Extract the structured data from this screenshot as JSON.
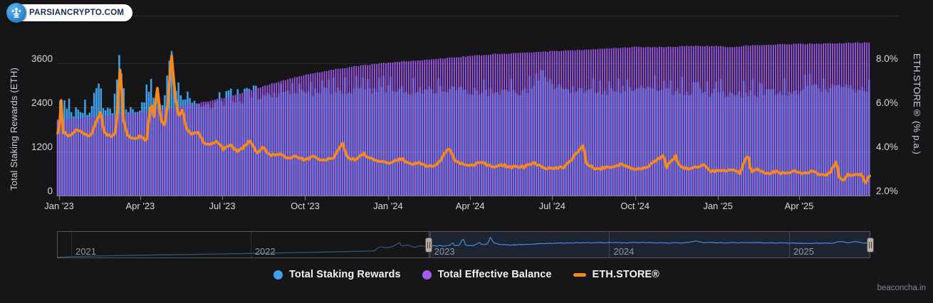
{
  "header": {
    "brand": "PARSIANCRYPTO.COM",
    "brand_color": "#1b2b4d",
    "pill_bg": "#ffffff",
    "icon": "parsiancrypto-logo-icon",
    "rule_color": "#43282e"
  },
  "watermark": "beaconcha.in",
  "legend": {
    "items": [
      {
        "label": "Total Staking Rewards",
        "color": "#3fa2ea",
        "marker": "circle"
      },
      {
        "label": "Total Effective Balance",
        "color": "#a35af0",
        "marker": "circle"
      },
      {
        "label": "ETH.STORE®",
        "color": "#f5881f",
        "marker": "dash"
      }
    ]
  },
  "chart_data": {
    "type": "combo",
    "subtype": [
      "column",
      "column",
      "line"
    ],
    "time_range": [
      "2022-12-29",
      "2025-06-22"
    ],
    "grid": "horizontal",
    "left_axis": {
      "title": "Total Staking Rewards (ETH)",
      "tick_values": [
        0,
        1200,
        2400,
        3600
      ],
      "min": 0,
      "max": 4316,
      "unit": "ETH"
    },
    "right_axis": {
      "title": "ETH.STORE® (% p.a.)",
      "tick_labels": [
        "2.0%",
        "4.0%",
        "6.0%",
        "8.0%"
      ],
      "tick_values": [
        2,
        4,
        6,
        8
      ],
      "min": 2,
      "max": 9.2,
      "unit": "% p.a."
    },
    "balance_axis": {
      "visible": false,
      "min": 0,
      "max": 36,
      "unit": "M ETH"
    },
    "x_ticks": [
      {
        "label": "Jan '23",
        "date": "2023-01-01"
      },
      {
        "label": "Apr '23",
        "date": "2023-04-01"
      },
      {
        "label": "Jul '23",
        "date": "2023-07-01"
      },
      {
        "label": "Oct '23",
        "date": "2023-10-01"
      },
      {
        "label": "Jan '24",
        "date": "2024-01-01"
      },
      {
        "label": "Apr '24",
        "date": "2024-04-01"
      },
      {
        "label": "Jul '24",
        "date": "2024-07-01"
      },
      {
        "label": "Oct '24",
        "date": "2024-10-01"
      },
      {
        "label": "Jan '25",
        "date": "2025-01-01"
      },
      {
        "label": "Apr '25",
        "date": "2025-04-01"
      }
    ],
    "series": [
      {
        "name": "Total Staking Rewards",
        "type": "column",
        "axis": "left",
        "color": "#3fa2ea",
        "jitter": 140,
        "points": [
          [
            "2023-01-01",
            2150
          ],
          [
            "2023-01-08",
            2300
          ],
          [
            "2023-01-15",
            2200
          ],
          [
            "2023-01-22",
            2350
          ],
          [
            "2023-02-01",
            2250
          ],
          [
            "2023-02-10",
            2400
          ],
          [
            "2023-02-16",
            2900
          ],
          [
            "2023-02-20",
            2350
          ],
          [
            "2023-03-01",
            2300
          ],
          [
            "2023-03-10",
            3780
          ],
          [
            "2023-03-12",
            2600
          ],
          [
            "2023-03-20",
            2300
          ],
          [
            "2023-04-01",
            2350
          ],
          [
            "2023-04-13",
            2900
          ],
          [
            "2023-04-16",
            2600
          ],
          [
            "2023-04-25",
            2500
          ],
          [
            "2023-05-01",
            3000
          ],
          [
            "2023-05-05",
            4240
          ],
          [
            "2023-05-07",
            3400
          ],
          [
            "2023-05-12",
            2800
          ],
          [
            "2023-05-20",
            2600
          ],
          [
            "2023-06-01",
            2500
          ],
          [
            "2023-06-15",
            2450
          ],
          [
            "2023-07-01",
            2500
          ],
          [
            "2023-07-15",
            2550
          ],
          [
            "2023-08-01",
            2650
          ],
          [
            "2023-08-15",
            2700
          ],
          [
            "2023-09-01",
            2750
          ],
          [
            "2023-10-01",
            2800
          ],
          [
            "2023-11-01",
            2850
          ],
          [
            "2023-12-01",
            2850
          ],
          [
            "2024-01-01",
            2900
          ],
          [
            "2024-02-01",
            2850
          ],
          [
            "2024-03-01",
            2900
          ],
          [
            "2024-04-01",
            2850
          ],
          [
            "2024-05-01",
            2800
          ],
          [
            "2024-06-01",
            2850
          ],
          [
            "2024-06-25",
            3150
          ],
          [
            "2024-07-10",
            2900
          ],
          [
            "2024-08-01",
            2900
          ],
          [
            "2024-09-01",
            2850
          ],
          [
            "2024-10-01",
            2900
          ],
          [
            "2024-11-01",
            2850
          ],
          [
            "2024-12-01",
            2800
          ],
          [
            "2025-01-01",
            2800
          ],
          [
            "2025-02-01",
            2750
          ],
          [
            "2025-03-01",
            2800
          ],
          [
            "2025-04-01",
            2800
          ],
          [
            "2025-04-15",
            3100
          ],
          [
            "2025-05-01",
            2800
          ],
          [
            "2025-05-15",
            3100
          ],
          [
            "2025-06-01",
            2850
          ],
          [
            "2025-06-20",
            2900
          ]
        ]
      },
      {
        "name": "Total Effective Balance",
        "type": "column",
        "axis": "balance",
        "color": "#a35af0",
        "jitter": 0.11,
        "points": [
          [
            "2023-01-01",
            17.5
          ],
          [
            "2023-02-01",
            18.0
          ],
          [
            "2023-03-01",
            18.5
          ],
          [
            "2023-04-01",
            19.1
          ],
          [
            "2023-05-01",
            20.0
          ],
          [
            "2023-06-01",
            21.1
          ],
          [
            "2023-07-01",
            22.4
          ],
          [
            "2023-08-01",
            24.2
          ],
          [
            "2023-09-01",
            26.2
          ],
          [
            "2023-10-01",
            27.8
          ],
          [
            "2023-11-01",
            29.0
          ],
          [
            "2023-12-01",
            29.9
          ],
          [
            "2024-01-01",
            30.6
          ],
          [
            "2024-02-01",
            31.1
          ],
          [
            "2024-03-01",
            31.6
          ],
          [
            "2024-04-01",
            32.1
          ],
          [
            "2024-05-01",
            32.6
          ],
          [
            "2024-06-01",
            32.9
          ],
          [
            "2024-07-01",
            33.2
          ],
          [
            "2024-08-01",
            33.5
          ],
          [
            "2024-09-01",
            33.9
          ],
          [
            "2024-10-01",
            34.2
          ],
          [
            "2024-11-01",
            34.2
          ],
          [
            "2024-12-01",
            34.4
          ],
          [
            "2025-01-01",
            34.4
          ],
          [
            "2025-01-20",
            34.1
          ],
          [
            "2025-02-01",
            34.5
          ],
          [
            "2025-03-01",
            34.7
          ],
          [
            "2025-04-01",
            34.9
          ],
          [
            "2025-05-01",
            35.0
          ],
          [
            "2025-06-22",
            35.2
          ]
        ]
      },
      {
        "name": "ETH.STORE®",
        "type": "line",
        "axis": "right",
        "color": "#f5881f",
        "width": 3.8,
        "jitter": 0.055,
        "points": [
          [
            "2023-01-01",
            4.8
          ],
          [
            "2023-01-03",
            6.7
          ],
          [
            "2023-01-05",
            4.9
          ],
          [
            "2023-01-12",
            4.7
          ],
          [
            "2023-01-20",
            5.0
          ],
          [
            "2023-01-28",
            4.8
          ],
          [
            "2023-02-05",
            4.7
          ],
          [
            "2023-02-16",
            5.8
          ],
          [
            "2023-02-20",
            4.8
          ],
          [
            "2023-02-26",
            4.7
          ],
          [
            "2023-03-05",
            4.8
          ],
          [
            "2023-03-10",
            8.0
          ],
          [
            "2023-03-13",
            5.5
          ],
          [
            "2023-03-18",
            4.7
          ],
          [
            "2023-03-25",
            4.6
          ],
          [
            "2023-04-02",
            4.7
          ],
          [
            "2023-04-08",
            4.5
          ],
          [
            "2023-04-13",
            6.3
          ],
          [
            "2023-04-16",
            5.6
          ],
          [
            "2023-04-20",
            6.9
          ],
          [
            "2023-04-24",
            5.4
          ],
          [
            "2023-04-28",
            5.2
          ],
          [
            "2023-05-03",
            6.5
          ],
          [
            "2023-05-05",
            8.7
          ],
          [
            "2023-05-07",
            7.8
          ],
          [
            "2023-05-10",
            6.4
          ],
          [
            "2023-05-14",
            5.6
          ],
          [
            "2023-05-18",
            5.9
          ],
          [
            "2023-05-22",
            5.1
          ],
          [
            "2023-05-28",
            4.8
          ],
          [
            "2023-06-04",
            4.9
          ],
          [
            "2023-06-10",
            4.4
          ],
          [
            "2023-06-18",
            4.3
          ],
          [
            "2023-06-25",
            4.5
          ],
          [
            "2023-07-02",
            4.1
          ],
          [
            "2023-07-10",
            4.3
          ],
          [
            "2023-07-18",
            4.0
          ],
          [
            "2023-07-25",
            4.2
          ],
          [
            "2023-08-01",
            4.5
          ],
          [
            "2023-08-08",
            3.9
          ],
          [
            "2023-08-15",
            4.2
          ],
          [
            "2023-08-23",
            3.8
          ],
          [
            "2023-09-01",
            3.9
          ],
          [
            "2023-09-10",
            3.7
          ],
          [
            "2023-09-20",
            3.8
          ],
          [
            "2023-10-01",
            3.6
          ],
          [
            "2023-10-10",
            3.8
          ],
          [
            "2023-10-20",
            3.6
          ],
          [
            "2023-11-01",
            3.7
          ],
          [
            "2023-11-12",
            4.4
          ],
          [
            "2023-11-16",
            3.8
          ],
          [
            "2023-11-25",
            3.6
          ],
          [
            "2023-12-05",
            3.9
          ],
          [
            "2023-12-15",
            3.6
          ],
          [
            "2023-12-25",
            3.5
          ],
          [
            "2024-01-05",
            3.5
          ],
          [
            "2024-01-15",
            3.7
          ],
          [
            "2024-01-25",
            3.4
          ],
          [
            "2024-02-05",
            3.5
          ],
          [
            "2024-02-15",
            3.3
          ],
          [
            "2024-02-25",
            3.4
          ],
          [
            "2024-03-08",
            4.2
          ],
          [
            "2024-03-15",
            3.6
          ],
          [
            "2024-03-25",
            3.4
          ],
          [
            "2024-04-05",
            3.4
          ],
          [
            "2024-04-15",
            3.5
          ],
          [
            "2024-04-25",
            3.3
          ],
          [
            "2024-05-05",
            3.4
          ],
          [
            "2024-05-15",
            3.3
          ],
          [
            "2024-06-01",
            3.3
          ],
          [
            "2024-06-10",
            3.5
          ],
          [
            "2024-06-20",
            3.3
          ],
          [
            "2024-07-01",
            3.2
          ],
          [
            "2024-07-15",
            3.3
          ],
          [
            "2024-08-05",
            4.3
          ],
          [
            "2024-08-08",
            3.4
          ],
          [
            "2024-08-20",
            3.2
          ],
          [
            "2024-09-01",
            3.3
          ],
          [
            "2024-09-15",
            3.4
          ],
          [
            "2024-10-01",
            3.2
          ],
          [
            "2024-10-15",
            3.3
          ],
          [
            "2024-11-01",
            3.85
          ],
          [
            "2024-11-05",
            3.3
          ],
          [
            "2024-11-15",
            3.8
          ],
          [
            "2024-11-20",
            3.3
          ],
          [
            "2024-12-01",
            3.2
          ],
          [
            "2024-12-15",
            3.4
          ],
          [
            "2024-12-25",
            3.1
          ],
          [
            "2025-01-05",
            3.1
          ],
          [
            "2025-01-15",
            3.2
          ],
          [
            "2025-01-25",
            3.0
          ],
          [
            "2025-02-03",
            3.87
          ],
          [
            "2025-02-07",
            3.1
          ],
          [
            "2025-02-15",
            3.2
          ],
          [
            "2025-02-25",
            3.0
          ],
          [
            "2025-03-05",
            3.1
          ],
          [
            "2025-03-15",
            3.0
          ],
          [
            "2025-03-25",
            3.1
          ],
          [
            "2025-04-05",
            3.0
          ],
          [
            "2025-04-15",
            3.1
          ],
          [
            "2025-04-25",
            2.95
          ],
          [
            "2025-05-05",
            3.0
          ],
          [
            "2025-05-12",
            3.55
          ],
          [
            "2025-05-16",
            2.8
          ],
          [
            "2025-05-20",
            2.65
          ],
          [
            "2025-05-25",
            3.0
          ],
          [
            "2025-06-01",
            2.9
          ],
          [
            "2025-06-08",
            3.0
          ],
          [
            "2025-06-14",
            2.6
          ],
          [
            "2025-06-18",
            2.9
          ],
          [
            "2025-06-22",
            2.7
          ]
        ]
      }
    ]
  },
  "navigator": {
    "time_range": [
      "2020-12-03",
      "2025-06-14"
    ],
    "year_ticks": [
      "2021",
      "2022",
      "2023",
      "2024",
      "2025"
    ],
    "selected_range": [
      "2022-12-29",
      "2025-06-14"
    ],
    "line_color": "#4b8fd6",
    "selection_tint": "rgba(77,124,205,0.14)",
    "value_axis": {
      "min": 0,
      "max": 5000
    },
    "points": [
      [
        "2020-12-03",
        150
      ],
      [
        "2021-01-01",
        300
      ],
      [
        "2021-03-01",
        420
      ],
      [
        "2021-06-01",
        560
      ],
      [
        "2021-09-01",
        700
      ],
      [
        "2021-12-01",
        830
      ],
      [
        "2022-03-01",
        980
      ],
      [
        "2022-06-01",
        1150
      ],
      [
        "2022-09-10",
        1350
      ],
      [
        "2022-09-20",
        2100
      ],
      [
        "2022-10-05",
        1900
      ],
      [
        "2022-10-20",
        2250
      ],
      [
        "2022-11-01",
        2900
      ],
      [
        "2022-11-05",
        2200
      ],
      [
        "2022-11-15",
        2450
      ],
      [
        "2022-12-01",
        2050
      ],
      [
        "2022-12-15",
        2250
      ],
      [
        "2022-12-29",
        2150
      ]
    ]
  }
}
